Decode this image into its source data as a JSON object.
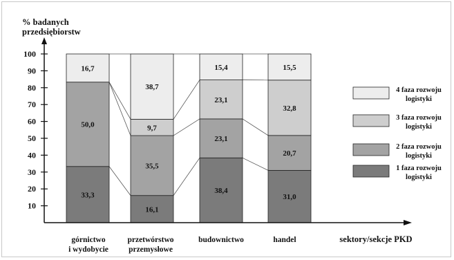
{
  "chart_data": {
    "type": "bar",
    "stacked": true,
    "ylabel": [
      "% badanych",
      "przedsiębiorstw"
    ],
    "xlabel": "sektory/sekcje PKD",
    "ylim": [
      0,
      100
    ],
    "yticks": [
      10,
      20,
      30,
      40,
      50,
      60,
      70,
      80,
      90,
      100
    ],
    "categories": [
      [
        "górnictwo",
        "i wydobycie"
      ],
      [
        "przetwórstwo",
        "przemysłowe"
      ],
      [
        "budownictwo"
      ],
      [
        "handel"
      ]
    ],
    "series": [
      {
        "name": [
          "1 faza rozwoju",
          "logistyki"
        ],
        "values": [
          33.3,
          16.1,
          38.4,
          31.0
        ],
        "labels": [
          "33,3",
          "16,1",
          "38,4",
          "31,0"
        ],
        "color": "#7b7b7b"
      },
      {
        "name": [
          "2 faza rozwoju",
          "logistyki"
        ],
        "values": [
          50.0,
          35.5,
          23.1,
          20.7
        ],
        "labels": [
          "50,0",
          "35,5",
          "23,1",
          "20,7"
        ],
        "color": "#a3a3a3"
      },
      {
        "name": [
          "3 faza rozwoju",
          "logistyki"
        ],
        "values": [
          0,
          9.7,
          23.1,
          32.8
        ],
        "labels": [
          "",
          "9,7",
          "23,1",
          "32,8"
        ],
        "color": "#cecece"
      },
      {
        "name": [
          "4 faza rozwoju",
          "logistyki"
        ],
        "values": [
          16.7,
          38.7,
          15.4,
          15.5
        ],
        "labels": [
          "16,7",
          "38,7",
          "15,4",
          "15,5"
        ],
        "color": "#ededed"
      }
    ],
    "connector_lines": true,
    "grid": false,
    "legend_position": "right"
  }
}
